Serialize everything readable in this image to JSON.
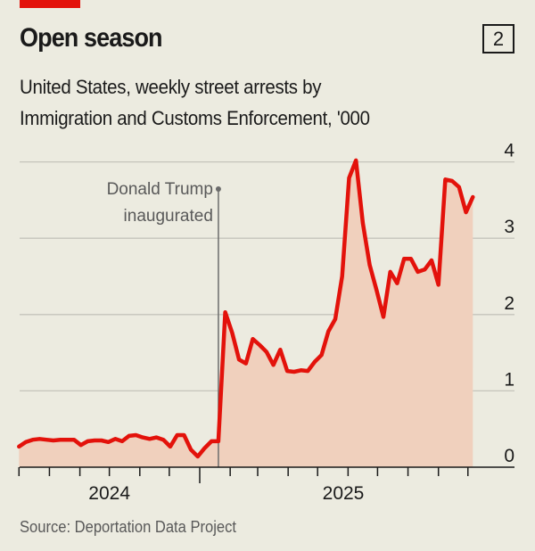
{
  "header": {
    "title": "Open season",
    "chart_number": "2",
    "subtitle_line1": "United States, weekly street arrests by",
    "subtitle_line2": "Immigration and Customs Enforcement, '000"
  },
  "source": "Source: Deportation Data Project",
  "colors": {
    "background": "#ecebe0",
    "line": "#e3120b",
    "fill": "#f0d0bd",
    "accent_bar": "#e3120b",
    "gridline": "#c5c4bb",
    "annotation": "#6b6b6b"
  },
  "chart_data": {
    "type": "area",
    "title": "Open season",
    "subtitle": "United States, weekly street arrests by Immigration and Customs Enforcement, '000",
    "xlabel": "",
    "ylabel": "",
    "ylim": [
      0,
      4
    ],
    "yticks": [
      "0",
      "1",
      "2",
      "3",
      "4"
    ],
    "ytick_position": "right",
    "grid": true,
    "xticks_monthly": true,
    "year_labels": [
      {
        "label": "2024",
        "from": "2024-07-01",
        "to": "2025-01-01"
      },
      {
        "label": "2025",
        "from": "2025-01-01",
        "to": "2025-11-01"
      }
    ],
    "annotation": {
      "line1": "Donald Trump",
      "line2": "inaugurated",
      "date": "2025-01-20"
    },
    "x": [
      "2024-07-01",
      "2024-07-08",
      "2024-07-15",
      "2024-07-22",
      "2024-07-29",
      "2024-08-05",
      "2024-08-12",
      "2024-08-19",
      "2024-08-26",
      "2024-09-02",
      "2024-09-09",
      "2024-09-16",
      "2024-09-23",
      "2024-09-30",
      "2024-10-07",
      "2024-10-14",
      "2024-10-21",
      "2024-10-28",
      "2024-11-04",
      "2024-11-11",
      "2024-11-18",
      "2024-11-25",
      "2024-12-02",
      "2024-12-09",
      "2024-12-16",
      "2024-12-23",
      "2024-12-30",
      "2025-01-06",
      "2025-01-13",
      "2025-01-20",
      "2025-01-27",
      "2025-02-03",
      "2025-02-10",
      "2025-02-17",
      "2025-02-24",
      "2025-03-03",
      "2025-03-10",
      "2025-03-17",
      "2025-03-24",
      "2025-03-31",
      "2025-04-07",
      "2025-04-14",
      "2025-04-21",
      "2025-04-28",
      "2025-05-05",
      "2025-05-12",
      "2025-05-19",
      "2025-05-26",
      "2025-06-02",
      "2025-06-09",
      "2025-06-16",
      "2025-06-23",
      "2025-06-30",
      "2025-07-07",
      "2025-07-14",
      "2025-07-21",
      "2025-07-28",
      "2025-08-04",
      "2025-08-11",
      "2025-08-18",
      "2025-08-25",
      "2025-09-01",
      "2025-09-08",
      "2025-09-15",
      "2025-09-22",
      "2025-09-29",
      "2025-10-06"
    ],
    "values": [
      0.27,
      0.33,
      0.36,
      0.37,
      0.36,
      0.35,
      0.36,
      0.36,
      0.36,
      0.29,
      0.34,
      0.35,
      0.35,
      0.33,
      0.37,
      0.34,
      0.41,
      0.42,
      0.39,
      0.37,
      0.39,
      0.36,
      0.27,
      0.42,
      0.42,
      0.23,
      0.14,
      0.25,
      0.34,
      0.34,
      2.03,
      1.76,
      1.41,
      1.36,
      1.68,
      1.6,
      1.51,
      1.34,
      1.54,
      1.26,
      1.25,
      1.27,
      1.26,
      1.38,
      1.47,
      1.78,
      1.94,
      2.5,
      3.79,
      4.02,
      3.2,
      2.65,
      2.32,
      1.97,
      2.56,
      2.41,
      2.73,
      2.73,
      2.56,
      2.59,
      2.71,
      2.39,
      3.77,
      3.75,
      3.67,
      3.34,
      3.54
    ]
  }
}
